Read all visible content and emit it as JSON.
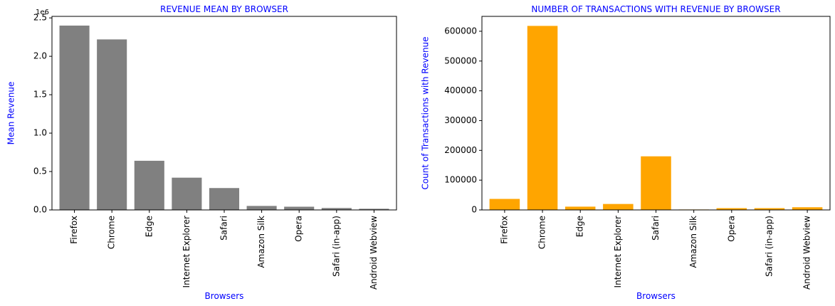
{
  "chart_data": [
    {
      "type": "bar",
      "title": "REVENUE MEAN BY BROWSER",
      "xlabel": "Browsers",
      "ylabel": "Mean Revenue",
      "categories": [
        "Firefox",
        "Chrome",
        "Edge",
        "Internet Explorer",
        "Safari",
        "Amazon Silk",
        "Opera",
        "Safari (in-app)",
        "Android Webview"
      ],
      "values": [
        2400000,
        2220000,
        640000,
        420000,
        285000,
        52000,
        42000,
        25000,
        15000
      ],
      "ylim": [
        0,
        2520000
      ],
      "yticks": [
        0,
        500000,
        1000000,
        1500000,
        2000000,
        2500000
      ],
      "ytick_labels": [
        "0.0",
        "0.5",
        "1.0",
        "1.5",
        "2.0",
        "2.5"
      ],
      "offset_text": "1e6",
      "bar_color": "#808080",
      "label_color": "#0000ff",
      "grid": false
    },
    {
      "type": "bar",
      "title": "NUMBER OF TRANSACTIONS WITH REVENUE BY BROWSER",
      "xlabel": "Browsers",
      "ylabel": "Count of Transactions with Revenue",
      "categories": [
        "Firefox",
        "Chrome",
        "Edge",
        "Internet Explorer",
        "Safari",
        "Amazon Silk",
        "Opera",
        "Safari (in-app)",
        "Android Webview"
      ],
      "values": [
        37000,
        618000,
        11000,
        20000,
        180000,
        1500,
        6000,
        6000,
        9000
      ],
      "ylim": [
        0,
        650000
      ],
      "yticks": [
        0,
        100000,
        200000,
        300000,
        400000,
        500000,
        600000
      ],
      "ytick_labels": [
        "0",
        "100000",
        "200000",
        "300000",
        "400000",
        "500000",
        "600000"
      ],
      "bar_color": "#ffa500",
      "label_color": "#0000ff",
      "grid": false
    }
  ]
}
